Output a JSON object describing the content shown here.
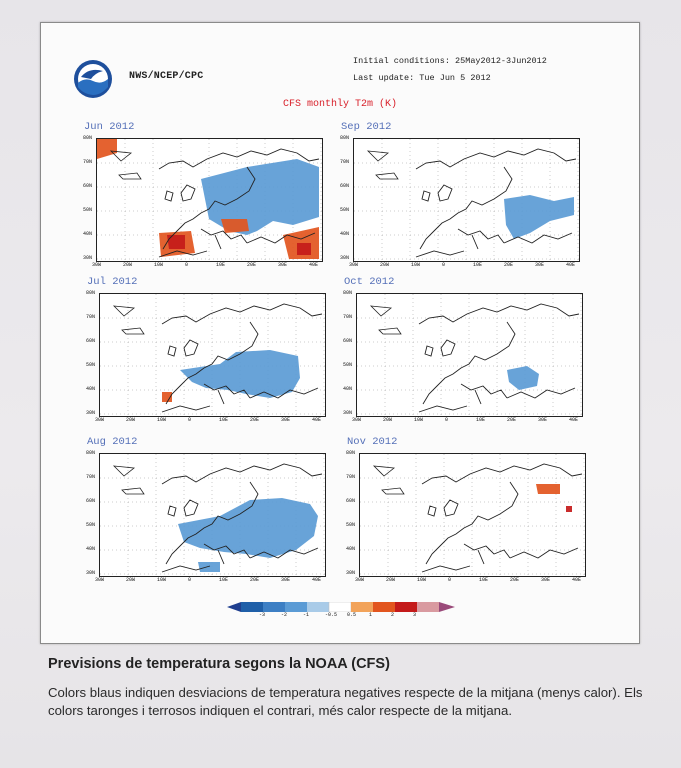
{
  "figure": {
    "agency": "NWS/NCEP/CPC",
    "initial_conditions": "Initial conditions: 25May2012-3Jun2012",
    "last_update": "Last update: Tue Jun 5 2012",
    "title": "CFS monthly T2m (K)",
    "panels": [
      {
        "month": "Jun 2012"
      },
      {
        "month": "Sep 2012"
      },
      {
        "month": "Jul 2012"
      },
      {
        "month": "Oct 2012"
      },
      {
        "month": "Aug 2012"
      },
      {
        "month": "Nov 2012"
      }
    ],
    "lat_labels": [
      "80N",
      "70N",
      "60N",
      "50N",
      "40N",
      "30N"
    ],
    "lon_labels": [
      "30W",
      "20W",
      "10W",
      "0",
      "10E",
      "20E",
      "30E",
      "40E"
    ],
    "colorbar_labels": [
      "-3",
      "-2",
      "-1",
      "-0.5",
      "0.5",
      "1",
      "2",
      "3"
    ],
    "colors": {
      "cold_strong": "#1f5fa8",
      "cold": "#5b9bd5",
      "cold_weak": "#a9cbe8",
      "warm_weak": "#f2a35a",
      "warm": "#e2551e",
      "warm_strong": "#c41a1a"
    }
  },
  "caption": {
    "title": "Previsions de temperatura segons la NOAA (CFS)",
    "body": "Colors blaus indiquen desviacions de temperatura negatives respecte de la mitjana (menys calor). Els colors taronges i terrosos indiquen el contrari, més calor respecte de la mitjana."
  }
}
